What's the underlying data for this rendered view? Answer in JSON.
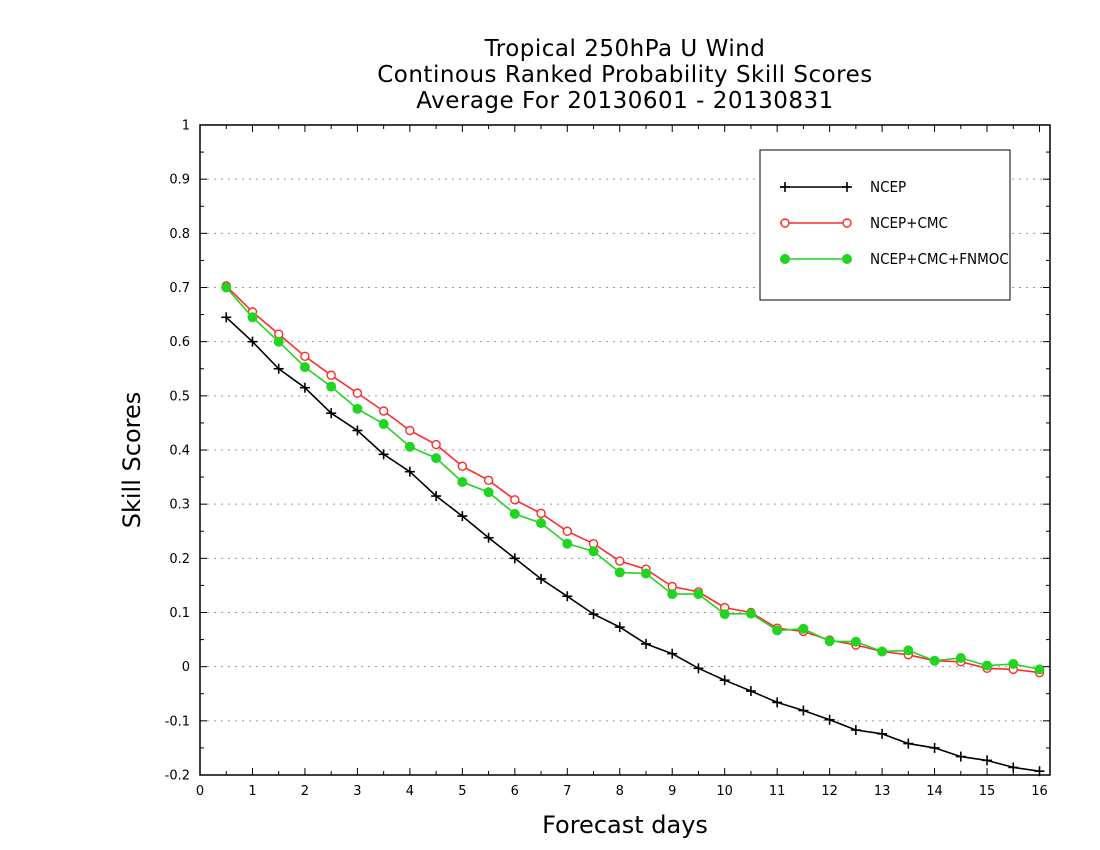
{
  "chart_data": {
    "type": "line",
    "title": [
      "Tropical 250hPa U Wind",
      "Continous Ranked Probability Skill Scores",
      "Average For 20130601 - 20130831"
    ],
    "xlabel": "Forecast days",
    "ylabel": "Skill Scores",
    "xlim": [
      0,
      16.2
    ],
    "ylim": [
      -0.2,
      1
    ],
    "xticks": [
      0,
      1,
      2,
      3,
      4,
      5,
      6,
      7,
      8,
      9,
      10,
      11,
      12,
      13,
      14,
      15,
      16
    ],
    "yticks": [
      -0.2,
      -0.1,
      0,
      0.1,
      0.2,
      0.3,
      0.4,
      0.5,
      0.6,
      0.7,
      0.8,
      0.9,
      1
    ],
    "ytick_labels": [
      "-0.2",
      "-0.1",
      "0",
      "0.1",
      "0.2",
      "0.3",
      "0.4",
      "0.5",
      "0.6",
      "0.7",
      "0.8",
      "0.9",
      "1"
    ],
    "grid": "horizontal dotted",
    "legend_position": "top-right",
    "x": [
      0.5,
      1,
      1.5,
      2,
      2.5,
      3,
      3.5,
      4,
      4.5,
      5,
      5.5,
      6,
      6.5,
      7,
      7.5,
      8,
      8.5,
      9,
      9.5,
      10,
      10.5,
      11,
      11.5,
      12,
      12.5,
      13,
      13.5,
      14,
      14.5,
      15,
      15.5,
      16
    ],
    "series": [
      {
        "name": "NCEP",
        "color": "#000000",
        "marker": "plus",
        "values": [
          0.645,
          0.6,
          0.55,
          0.515,
          0.468,
          0.436,
          0.392,
          0.36,
          0.315,
          0.278,
          0.238,
          0.2,
          0.162,
          0.13,
          0.097,
          0.073,
          0.042,
          0.024,
          -0.003,
          -0.025,
          -0.045,
          -0.066,
          -0.081,
          -0.098,
          -0.117,
          -0.124,
          -0.142,
          -0.15,
          -0.166,
          -0.173,
          -0.186,
          -0.193
        ]
      },
      {
        "name": "NCEP+CMC",
        "color": "#ff2b2b",
        "marker": "open-circle",
        "values": [
          0.703,
          0.655,
          0.614,
          0.573,
          0.538,
          0.505,
          0.472,
          0.436,
          0.41,
          0.37,
          0.344,
          0.308,
          0.283,
          0.25,
          0.227,
          0.195,
          0.18,
          0.148,
          0.138,
          0.109,
          0.1,
          0.071,
          0.065,
          0.049,
          0.04,
          0.028,
          0.022,
          0.011,
          0.009,
          -0.003,
          -0.005,
          -0.011
        ]
      },
      {
        "name": "NCEP+CMC+FNMOC",
        "color": "#22d422",
        "marker": "filled-circle",
        "values": [
          0.7,
          0.645,
          0.6,
          0.553,
          0.517,
          0.476,
          0.448,
          0.406,
          0.385,
          0.341,
          0.322,
          0.282,
          0.265,
          0.227,
          0.213,
          0.174,
          0.172,
          0.134,
          0.134,
          0.097,
          0.098,
          0.067,
          0.07,
          0.047,
          0.046,
          0.028,
          0.03,
          0.011,
          0.016,
          0.002,
          0.005,
          -0.005
        ]
      }
    ]
  }
}
